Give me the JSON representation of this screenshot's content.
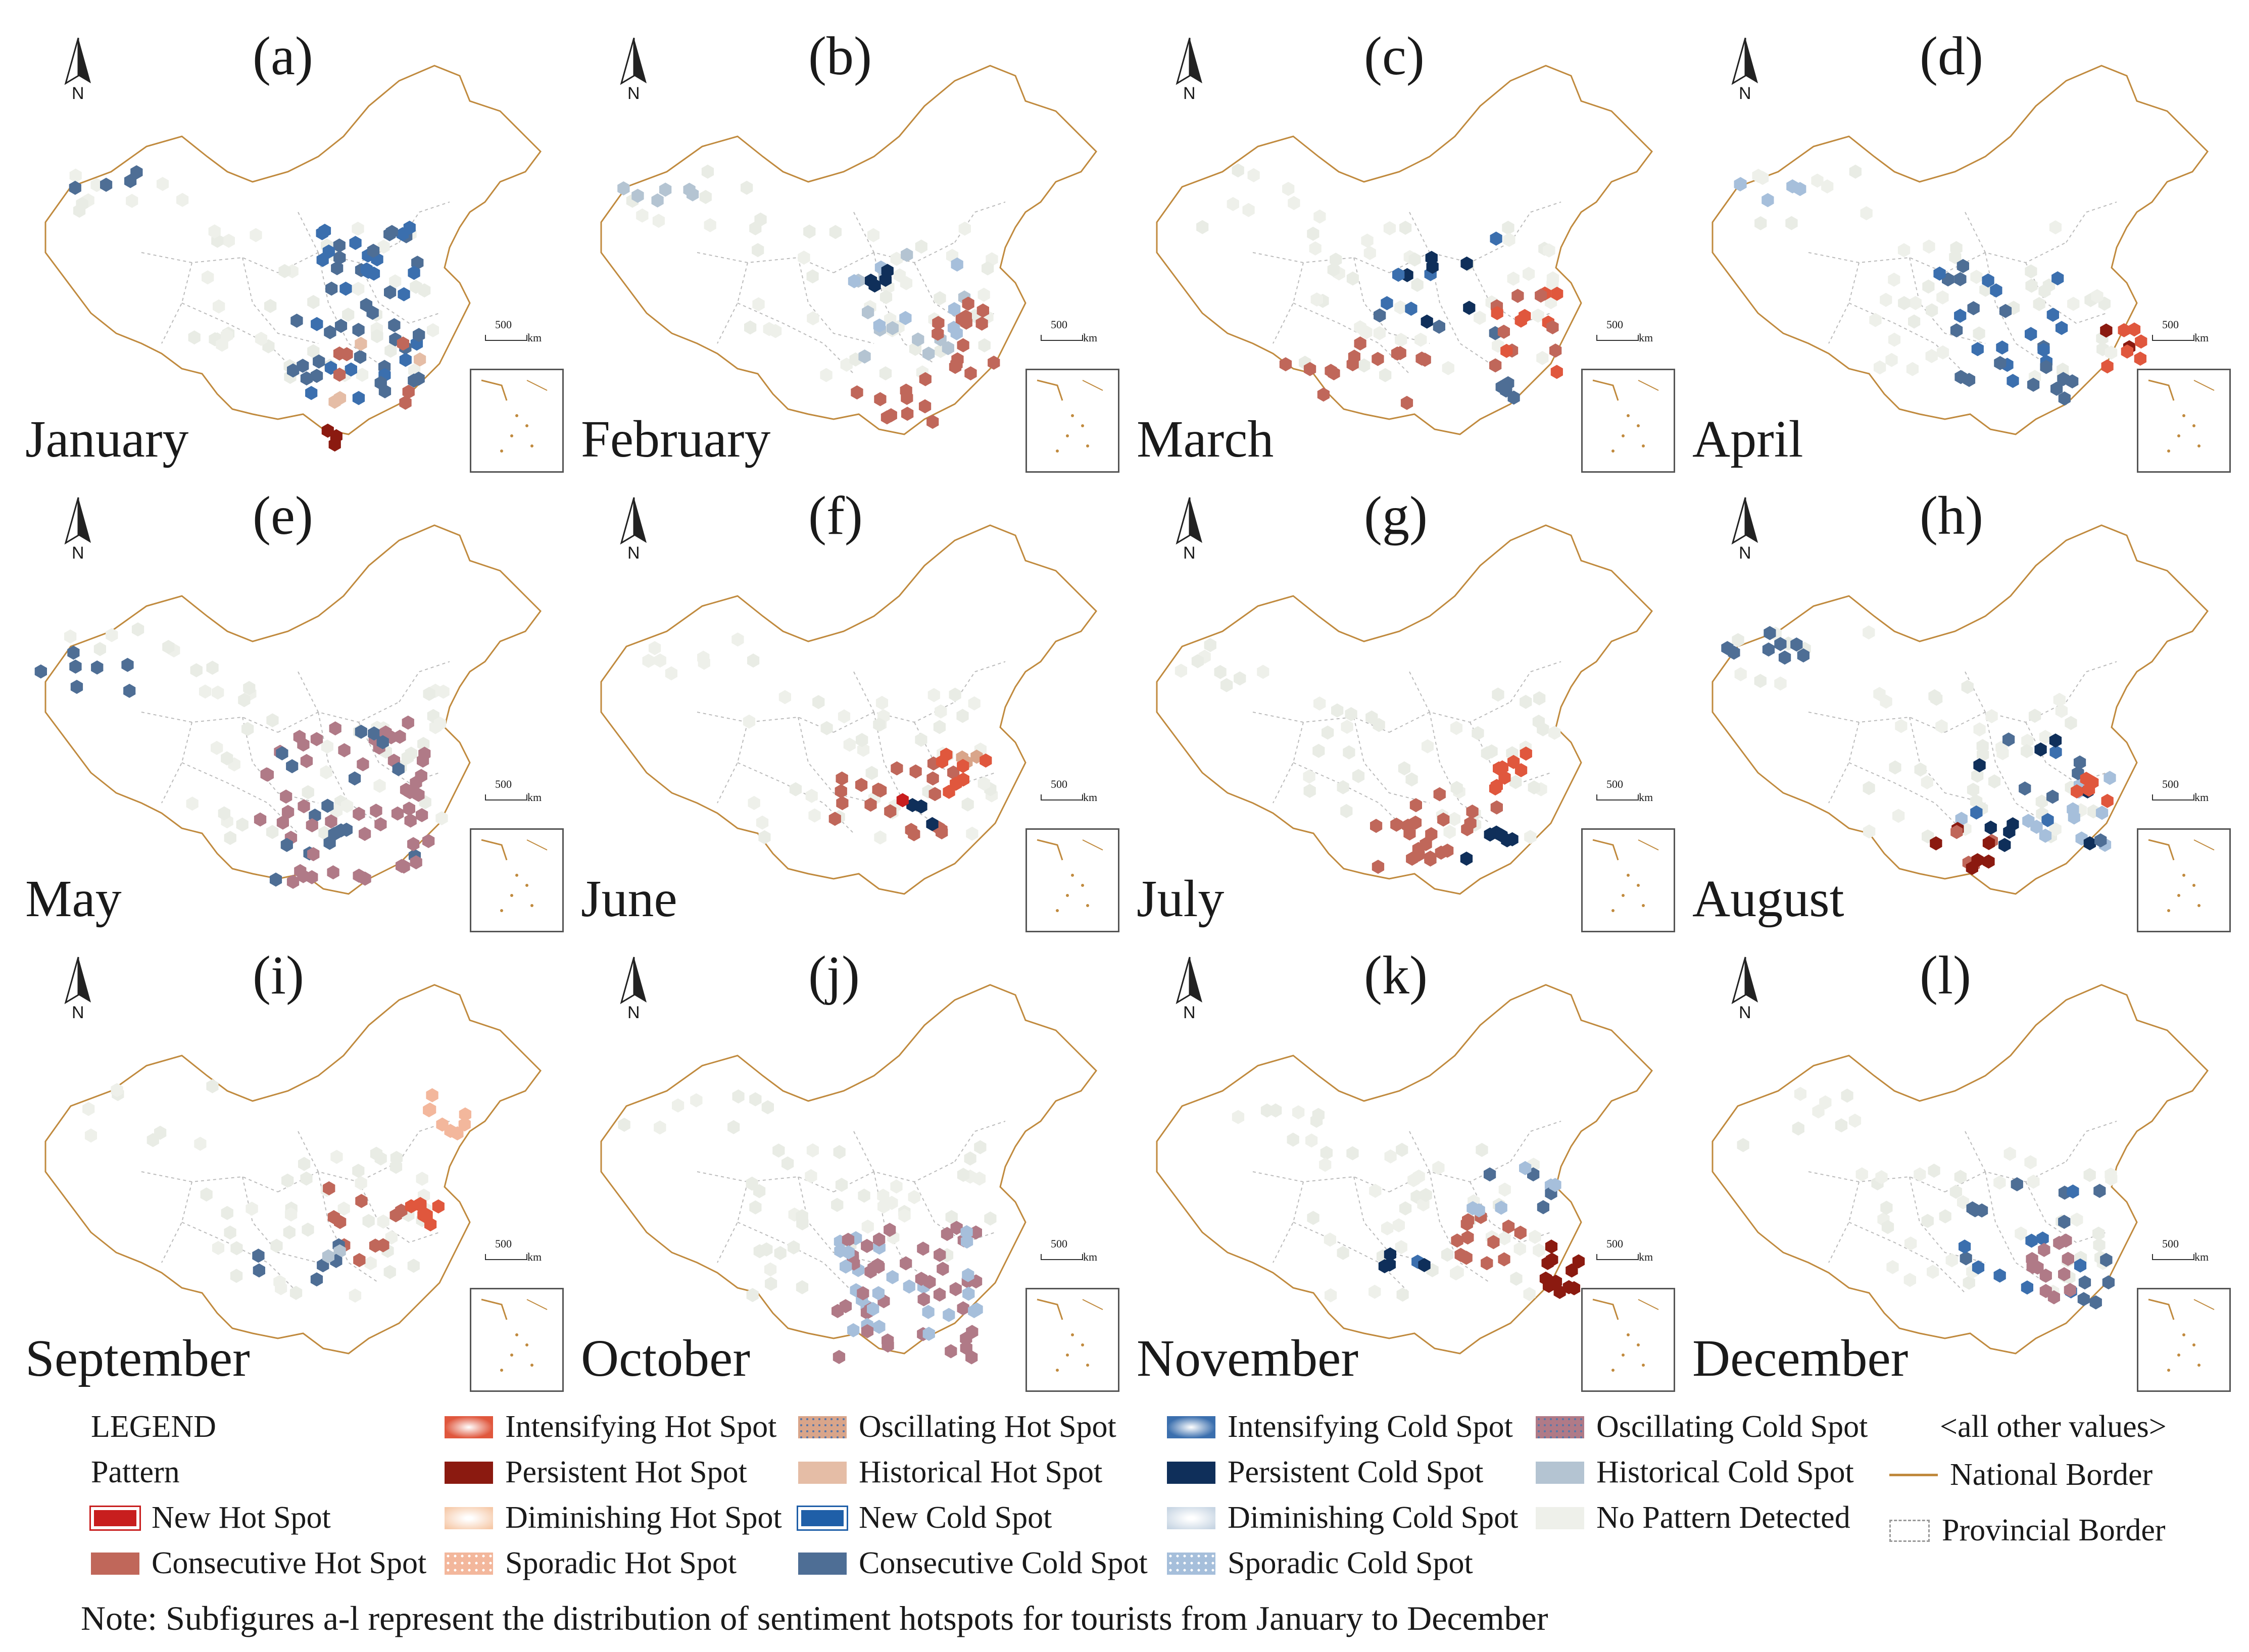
{
  "panels": [
    {
      "letter": "(a)",
      "month": "January",
      "pattern": "cold_center"
    },
    {
      "letter": "(b)",
      "month": "February",
      "pattern": "hot_east"
    },
    {
      "letter": "(c)",
      "month": "March",
      "pattern": "mixed_hot"
    },
    {
      "letter": "(d)",
      "month": "April",
      "pattern": "cold_persist"
    },
    {
      "letter": "(e)",
      "month": "May",
      "pattern": "oscillating_cold"
    },
    {
      "letter": "(f)",
      "month": "June",
      "pattern": "hot_center"
    },
    {
      "letter": "(g)",
      "month": "July",
      "pattern": "hot_south"
    },
    {
      "letter": "(h)",
      "month": "August",
      "pattern": "cold_mixed"
    },
    {
      "letter": "(i)",
      "month": "September",
      "pattern": "hot_light"
    },
    {
      "letter": "(j)",
      "month": "October",
      "pattern": "oscillating_cold_dense"
    },
    {
      "letter": "(k)",
      "month": "November",
      "pattern": "persistent_hot"
    },
    {
      "letter": "(l)",
      "month": "December",
      "pattern": "cold_sparse"
    }
  ],
  "map_labels": {
    "north": "N",
    "scale_value": "500",
    "scale_unit": "km"
  },
  "legend": {
    "title": "LEGEND",
    "subtitle": "Pattern",
    "items": [
      {
        "label": "New Hot Spot",
        "color": "#c81e1e",
        "style": "new"
      },
      {
        "label": "Consecutive Hot Spot",
        "color": "#c0675a",
        "style": "solid"
      },
      {
        "label": "Intensifying Hot Spot",
        "color": "#e0573d",
        "style": "grad"
      },
      {
        "label": "Persistent Hot Spot",
        "color": "#8b1a10",
        "style": "solid"
      },
      {
        "label": "Diminishing Hot Spot",
        "color": "#f6c9a8",
        "style": "soft"
      },
      {
        "label": "Sporadic Hot Spot",
        "color": "#f3b79c",
        "style": "dots"
      },
      {
        "label": "Oscillating Hot Spot",
        "color": "#d9a58a",
        "style": "osc"
      },
      {
        "label": "Historical Hot Spot",
        "color": "#e5bda6",
        "style": "solid"
      },
      {
        "label": "New Cold Spot",
        "color": "#1f5fa8",
        "style": "new"
      },
      {
        "label": "Consecutive Cold Spot",
        "color": "#4e6e95",
        "style": "solid"
      },
      {
        "label": "Intensifying Cold Spot",
        "color": "#3b6fae",
        "style": "grad"
      },
      {
        "label": "Persistent Cold Spot",
        "color": "#0f2f5a",
        "style": "solid"
      },
      {
        "label": "Diminishing Cold Spot",
        "color": "#c7d5e3",
        "style": "soft"
      },
      {
        "label": "Sporadic Cold Spot",
        "color": "#a6bfdb",
        "style": "dots"
      },
      {
        "label": "Oscillating Cold Spot",
        "color": "#b07a87",
        "style": "osc"
      },
      {
        "label": "Historical Cold Spot",
        "color": "#b4c4d2",
        "style": "solid"
      },
      {
        "label": "No Pattern Detected",
        "color": "#eef0ea",
        "style": "solid"
      }
    ],
    "other_header": "<all other values>",
    "national_border": "National Border",
    "provincial_border": "Provincial Border"
  },
  "note": "Note: Subfigures a-l represent the distribution of sentiment hotspots for tourists from January to December"
}
